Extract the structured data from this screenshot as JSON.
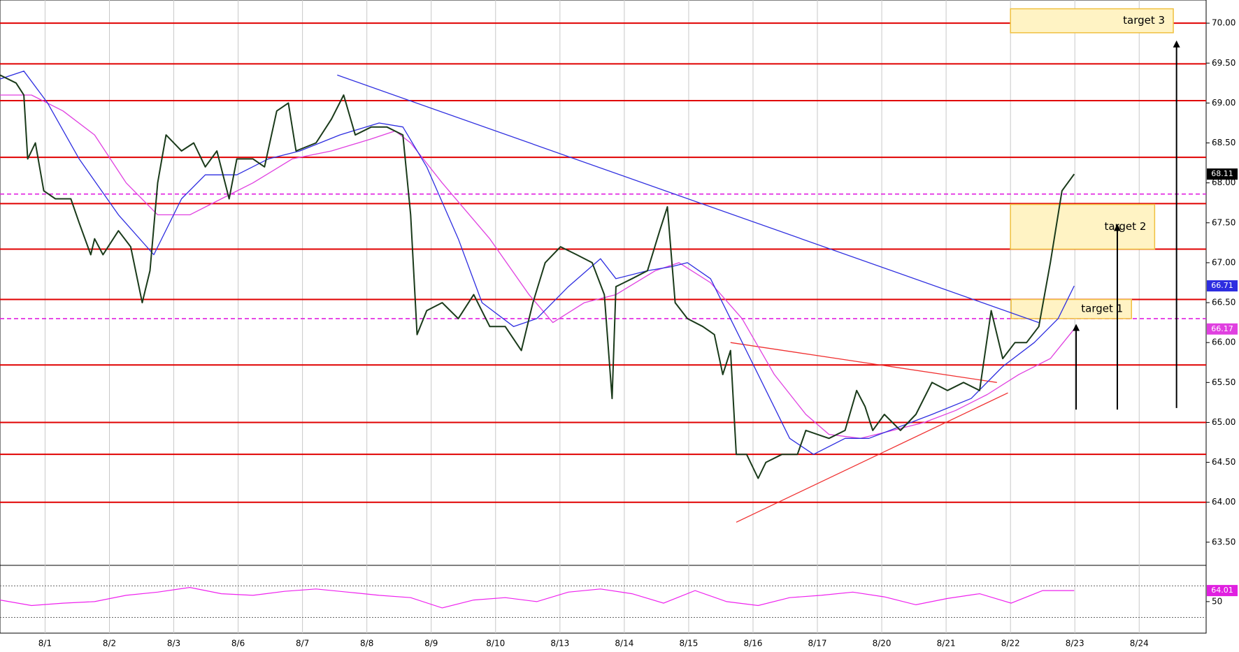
{
  "chart_data": {
    "type": "line",
    "xlim": [
      -0.7,
      18.04
    ],
    "ylim": [
      63.21,
      70.29
    ],
    "xticks": [
      {
        "value": 0,
        "label": "8/1"
      },
      {
        "value": 1,
        "label": "8/2"
      },
      {
        "value": 2,
        "label": "8/3"
      },
      {
        "value": 3,
        "label": "8/6"
      },
      {
        "value": 4,
        "label": "8/7"
      },
      {
        "value": 5,
        "label": "8/8"
      },
      {
        "value": 6,
        "label": "8/9"
      },
      {
        "value": 7,
        "label": "8/10"
      },
      {
        "value": 8,
        "label": "8/13"
      },
      {
        "value": 9,
        "label": "8/14"
      },
      {
        "value": 10,
        "label": "8/15"
      },
      {
        "value": 11,
        "label": "8/16"
      },
      {
        "value": 12,
        "label": "8/17"
      },
      {
        "value": 13,
        "label": "8/20"
      },
      {
        "value": 14,
        "label": "8/21"
      },
      {
        "value": 15,
        "label": "8/22"
      },
      {
        "value": 16,
        "label": "8/23"
      },
      {
        "value": 17,
        "label": "8/24"
      }
    ],
    "yticks": [
      {
        "value": 63.5,
        "label": "63.50"
      },
      {
        "value": 64,
        "label": "64.00"
      },
      {
        "value": 64.5,
        "label": "64.50"
      },
      {
        "value": 65,
        "label": "65.00"
      },
      {
        "value": 65.5,
        "label": "65.50"
      },
      {
        "value": 66,
        "label": "66.00"
      },
      {
        "value": 66.5,
        "label": "66.50"
      },
      {
        "value": 67,
        "label": "67.00"
      },
      {
        "value": 67.5,
        "label": "67.50"
      },
      {
        "value": 68,
        "label": "68.00"
      },
      {
        "value": 68.5,
        "label": "68.50"
      },
      {
        "value": 69,
        "label": "69.00"
      },
      {
        "value": 69.5,
        "label": "69.50"
      },
      {
        "value": 70,
        "label": "70.00"
      }
    ],
    "series": [
      {
        "color": "#1a3a1a",
        "x": [
          -0.7,
          -0.45,
          -0.33,
          -0.27,
          -0.15,
          -0.02,
          0.16,
          0.4,
          0.53,
          0.71,
          0.77,
          0.9,
          1.14,
          1.33,
          1.51,
          1.63,
          1.75,
          1.88,
          2.12,
          2.31,
          2.49,
          2.67,
          2.86,
          2.98,
          3.23,
          3.41,
          3.6,
          3.78,
          3.9,
          4.21,
          4.45,
          4.64,
          4.82,
          5.07,
          5.31,
          5.56,
          5.68,
          5.78,
          5.93,
          6.17,
          6.42,
          6.66,
          6.91,
          7.15,
          7.4,
          7.58,
          7.77,
          8.01,
          8.26,
          8.5,
          8.69,
          8.81,
          8.87,
          9.12,
          9.36,
          9.55,
          9.67,
          9.79,
          9.98,
          10.22,
          10.4,
          10.53,
          10.65,
          10.74,
          10.9,
          11.08,
          11.2,
          11.45,
          11.69,
          11.82,
          12.18,
          12.43,
          12.61,
          12.74,
          12.86,
          13.04,
          13.29,
          13.53,
          13.78,
          14.02,
          14.27,
          14.52,
          14.7,
          14.88,
          15.07,
          15.25,
          15.44,
          15.62,
          15.8,
          15.99
        ],
        "values": [
          69.35,
          69.25,
          69.1,
          68.3,
          68.5,
          67.9,
          67.8,
          67.8,
          67.5,
          67.1,
          67.3,
          67.1,
          67.4,
          67.2,
          66.5,
          66.9,
          68.0,
          68.6,
          68.4,
          68.5,
          68.2,
          68.4,
          67.8,
          68.3,
          68.3,
          68.2,
          68.9,
          69.0,
          68.4,
          68.5,
          68.8,
          69.1,
          68.6,
          68.7,
          68.7,
          68.6,
          67.6,
          66.1,
          66.4,
          66.5,
          66.3,
          66.6,
          66.2,
          66.2,
          65.9,
          66.5,
          67.0,
          67.2,
          67.1,
          67.0,
          66.6,
          65.3,
          66.7,
          66.8,
          66.9,
          67.4,
          67.7,
          66.5,
          66.3,
          66.2,
          66.1,
          65.6,
          65.9,
          64.6,
          64.6,
          64.3,
          64.5,
          64.6,
          64.6,
          64.9,
          64.8,
          64.9,
          65.4,
          65.2,
          64.9,
          65.1,
          64.9,
          65.1,
          65.5,
          65.4,
          65.5,
          65.4,
          66.4,
          65.8,
          66.0,
          66.0,
          66.2,
          67.0,
          67.9,
          68.11
        ]
      },
      {
        "color": "#2d2de0",
        "x": [
          -0.7,
          -0.33,
          0.04,
          0.53,
          1.14,
          1.69,
          2.12,
          2.49,
          2.98,
          3.47,
          3.96,
          4.58,
          5.19,
          5.56,
          5.93,
          6.42,
          6.79,
          7.28,
          7.64,
          8.13,
          8.63,
          8.87,
          9.36,
          9.73,
          9.98,
          10.34,
          10.71,
          11.08,
          11.57,
          11.94,
          12.43,
          12.8,
          13.29,
          13.78,
          14.39,
          14.88,
          15.37,
          15.74,
          15.99
        ],
        "values": [
          69.3,
          69.4,
          69.0,
          68.3,
          67.6,
          67.1,
          67.8,
          68.1,
          68.1,
          68.3,
          68.4,
          68.6,
          68.75,
          68.7,
          68.2,
          67.3,
          66.5,
          66.2,
          66.3,
          66.7,
          67.05,
          66.8,
          66.9,
          66.95,
          67.0,
          66.8,
          66.2,
          65.6,
          64.8,
          64.6,
          64.8,
          64.8,
          64.95,
          65.1,
          65.3,
          65.7,
          66.0,
          66.3,
          66.71
        ]
      },
      {
        "color": "#e040e0",
        "x": [
          -0.7,
          -0.21,
          0.28,
          0.77,
          1.26,
          1.75,
          2.25,
          2.74,
          3.23,
          3.84,
          4.45,
          5.07,
          5.44,
          5.68,
          6.17,
          6.91,
          7.52,
          7.89,
          8.38,
          8.87,
          9.48,
          9.85,
          10.34,
          10.83,
          11.33,
          11.82,
          12.18,
          12.67,
          13.17,
          13.66,
          14.15,
          14.64,
          15.13,
          15.62,
          15.99
        ],
        "values": [
          69.1,
          69.1,
          68.9,
          68.6,
          68.0,
          67.6,
          67.6,
          67.8,
          68.0,
          68.3,
          68.4,
          68.55,
          68.65,
          68.5,
          68.0,
          67.3,
          66.6,
          66.25,
          66.5,
          66.6,
          66.9,
          67.0,
          66.75,
          66.3,
          65.6,
          65.1,
          64.85,
          64.8,
          64.9,
          65.0,
          65.15,
          65.35,
          65.6,
          65.8,
          66.17
        ]
      }
    ],
    "hlines": [
      {
        "value": 70.0,
        "color": "#e00000",
        "style": "solid"
      },
      {
        "value": 69.49,
        "color": "#e00000",
        "style": "solid"
      },
      {
        "value": 69.03,
        "color": "#e00000",
        "style": "solid"
      },
      {
        "value": 68.32,
        "color": "#e00000",
        "style": "solid"
      },
      {
        "value": 67.74,
        "color": "#e00000",
        "style": "solid"
      },
      {
        "value": 67.17,
        "color": "#e00000",
        "style": "solid"
      },
      {
        "value": 66.54,
        "color": "#e00000",
        "style": "solid"
      },
      {
        "value": 65.72,
        "color": "#e00000",
        "style": "solid"
      },
      {
        "value": 65.0,
        "color": "#e00000",
        "style": "solid"
      },
      {
        "value": 64.6,
        "color": "#e00000",
        "style": "solid"
      },
      {
        "value": 64.0,
        "color": "#e00000",
        "style": "solid"
      },
      {
        "value": 67.86,
        "color": "#e020e0",
        "style": "dashed"
      },
      {
        "value": 66.3,
        "color": "#e020e0",
        "style": "dashed"
      }
    ],
    "trendlines": [
      {
        "color": "#3030e0",
        "x": [
          4.54,
          15.44
        ],
        "values": [
          69.35,
          66.25
        ]
      },
      {
        "color": "#f03030",
        "x": [
          10.65,
          14.79
        ],
        "values": [
          66.0,
          65.5
        ]
      },
      {
        "color": "#f03030",
        "x": [
          10.74,
          14.96
        ],
        "values": [
          63.75,
          65.37
        ]
      }
    ],
    "targets": [
      {
        "label": "target 1",
        "x": [
          15.01,
          16.88
        ],
        "values": [
          66.3,
          66.54
        ]
      },
      {
        "label": "target 2",
        "x": [
          15.0,
          17.24
        ],
        "values": [
          67.17,
          67.73
        ]
      },
      {
        "label": "target 3",
        "x": [
          15.0,
          17.53
        ],
        "values": [
          69.88,
          70.18
        ]
      }
    ],
    "arrows": [
      {
        "x": 16.02,
        "values": [
          65.16,
          66.19
        ]
      },
      {
        "x": 16.66,
        "values": [
          65.16,
          67.44
        ]
      },
      {
        "x": 17.58,
        "values": [
          65.18,
          69.74
        ]
      }
    ],
    "price_tags": [
      {
        "value": 68.11,
        "color": "#000000"
      },
      {
        "value": 66.71,
        "color": "#2d2de0"
      },
      {
        "value": 66.17,
        "color": "#e040e0"
      }
    ],
    "rsi": {
      "ylim": [
        10,
        96
      ],
      "yticks": [
        50
      ],
      "levels": [
        30,
        70
      ],
      "color": "#ee22ee",
      "x": [
        -0.7,
        -0.21,
        0.28,
        0.77,
        1.26,
        1.75,
        2.25,
        2.74,
        3.23,
        3.72,
        4.21,
        4.7,
        5.19,
        5.68,
        6.17,
        6.66,
        7.15,
        7.64,
        8.13,
        8.63,
        9.12,
        9.61,
        10.1,
        10.59,
        11.08,
        11.57,
        12.06,
        12.55,
        13.04,
        13.53,
        14.02,
        14.52,
        15.01,
        15.5,
        15.99
      ],
      "values": [
        52,
        45,
        48,
        50,
        58,
        62,
        68,
        60,
        58,
        63,
        66,
        62,
        58,
        55,
        42,
        52,
        55,
        50,
        62,
        66,
        60,
        48,
        64,
        50,
        45,
        55,
        58,
        62,
        56,
        46,
        54,
        60,
        48,
        64,
        64.01
      ],
      "tag": {
        "value": 64.01,
        "color": "#e020e0"
      }
    }
  }
}
